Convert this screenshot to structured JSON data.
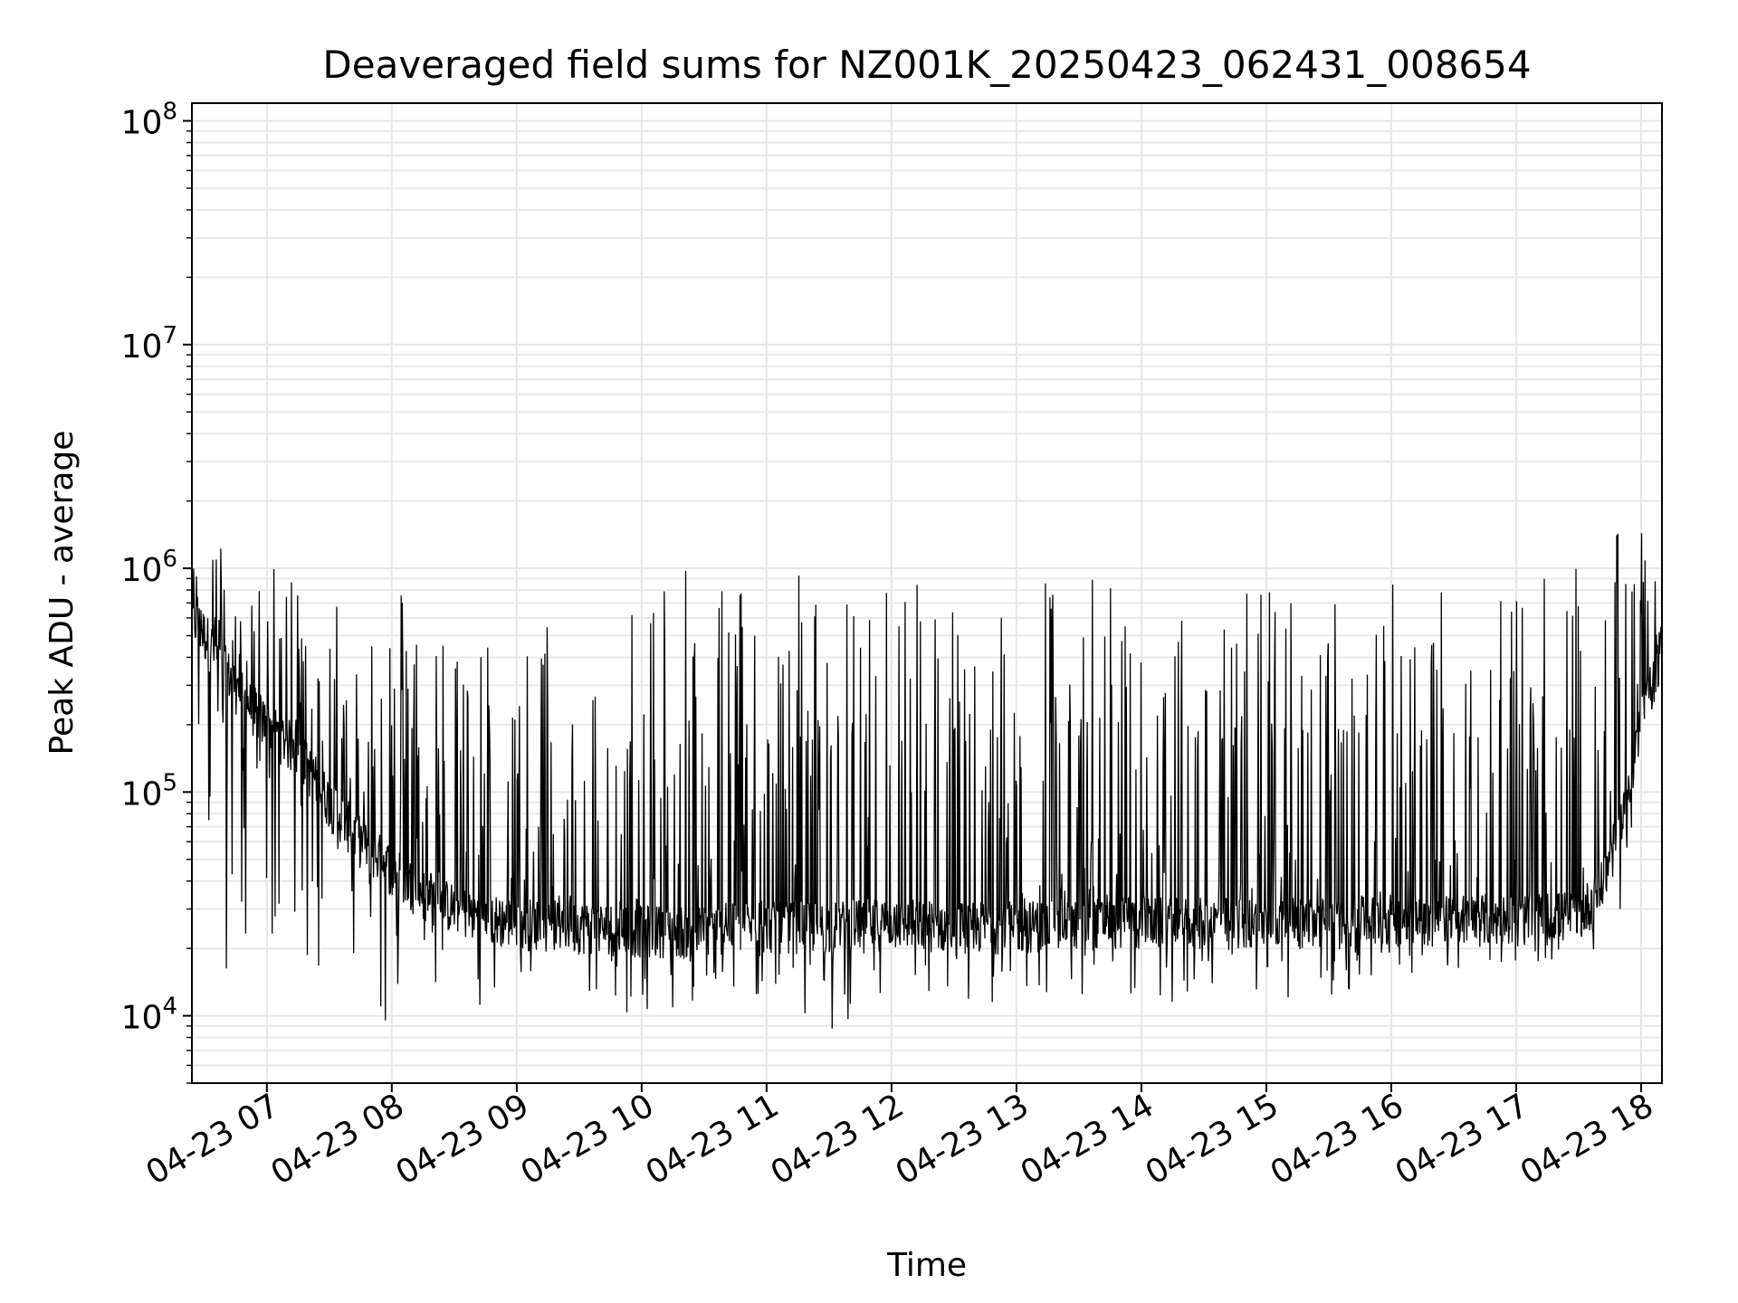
{
  "chart_data": {
    "type": "line",
    "title": "Deaveraged field sums for NZ001K_20250423_062431_008654",
    "xlabel": "Time",
    "ylabel": "Peak ADU - average",
    "yscale": "log",
    "ylim": [
      5000,
      120000000
    ],
    "xlim": [
      "04-23 06:24",
      "04-23 18:10"
    ],
    "grid": true,
    "line_color": "#000000",
    "grid_color": "#e6e6e6",
    "x_ticks": [
      "04-23 07",
      "04-23 08",
      "04-23 09",
      "04-23 10",
      "04-23 11",
      "04-23 12",
      "04-23 13",
      "04-23 14",
      "04-23 15",
      "04-23 16",
      "04-23 17",
      "04-23 18"
    ],
    "y_ticks": [
      {
        "value": 10000,
        "base": "10",
        "exp": "4"
      },
      {
        "value": 100000,
        "base": "10",
        "exp": "5"
      },
      {
        "value": 1000000,
        "base": "10",
        "exp": "6"
      },
      {
        "value": 10000000,
        "base": "10",
        "exp": "7"
      },
      {
        "value": 100000000,
        "base": "10",
        "exp": "8"
      }
    ],
    "series": [
      {
        "x": [
          "04-23 06:24",
          "04-23 06:30",
          "04-23 06:40",
          "04-23 06:50",
          "04-23 07:00",
          "04-23 07:15",
          "04-23 07:30",
          "04-23 07:45",
          "04-23 08:00",
          "04-23 08:15",
          "04-23 08:30",
          "04-23 08:45",
          "04-23 09:00",
          "04-23 09:30",
          "04-23 10:00",
          "04-23 10:30",
          "04-23 11:00",
          "04-23 11:30",
          "04-23 12:00",
          "04-23 12:30",
          "04-23 13:00",
          "04-23 13:30",
          "04-23 14:00",
          "04-23 14:30",
          "04-23 15:00",
          "04-23 15:30",
          "04-23 16:00",
          "04-23 16:30",
          "04-23 17:00",
          "04-23 17:30",
          "04-23 17:40",
          "04-23 17:50",
          "04-23 18:00",
          "04-23 18:10"
        ],
        "y_base": [
          600000,
          500000,
          350000,
          250000,
          200000,
          150000,
          90000,
          60000,
          45000,
          35000,
          30000,
          27000,
          26000,
          25000,
          24000,
          24000,
          25000,
          25000,
          26000,
          25000,
          25000,
          26000,
          26000,
          26000,
          26000,
          26000,
          27000,
          27000,
          27000,
          28000,
          35000,
          70000,
          200000,
          450000
        ],
        "y_spike_max": [
          1600000,
          1600000,
          1200000,
          1100000,
          1000000,
          1000000,
          900000,
          800000,
          1000000,
          600000,
          500000,
          500000,
          400000,
          900000,
          1000000,
          1000000,
          1000000,
          1000000,
          1000000,
          1000000,
          1000000,
          1000000,
          1000000,
          1000000,
          1000000,
          700000,
          1000000,
          900000,
          900000,
          1000000,
          1200000,
          1500000,
          1500000,
          700000
        ],
        "y_min": [
          170000,
          80000,
          16000,
          16000,
          18000,
          16000,
          14000,
          12000,
          8500,
          12000,
          12000,
          11000,
          11000,
          11000,
          9500,
          10000,
          12000,
          7800,
          11000,
          9300,
          12000,
          11000,
          12000,
          11000,
          12000,
          12000,
          15000,
          16000,
          17000,
          18000,
          20000,
          30000,
          100000,
          200000
        ]
      }
    ]
  }
}
